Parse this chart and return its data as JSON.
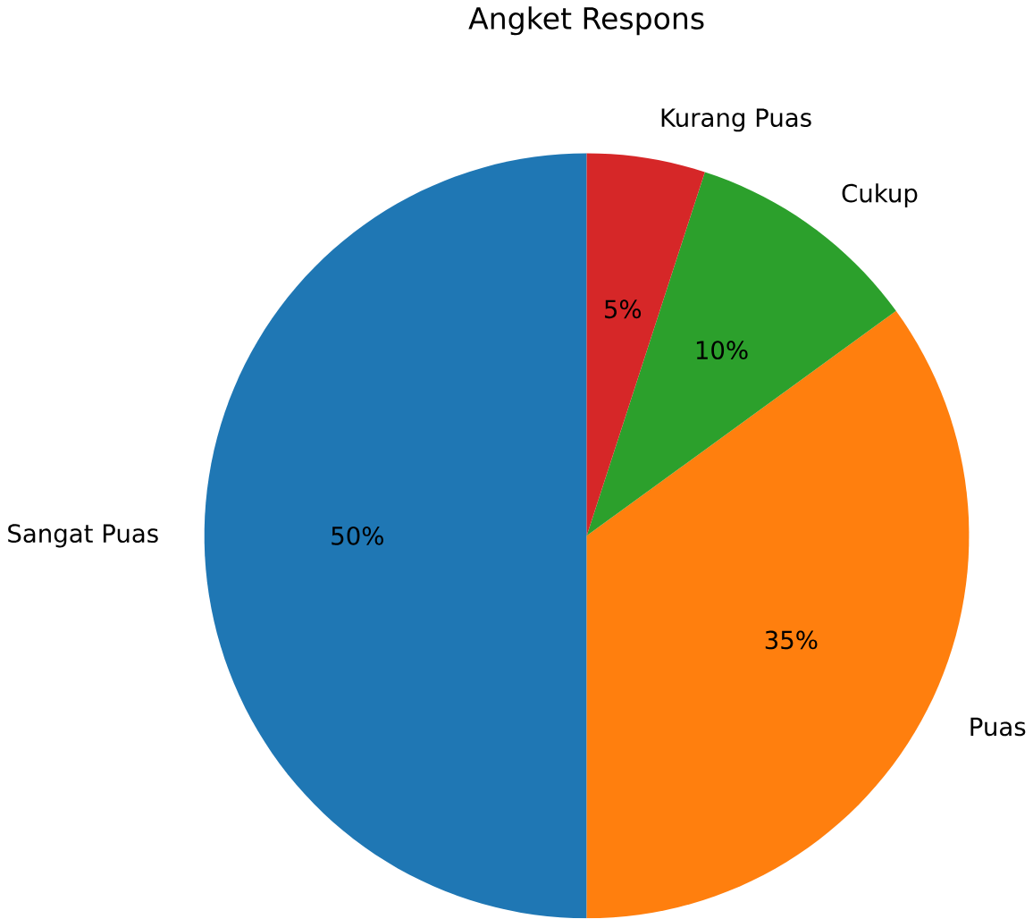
{
  "chart_data": {
    "type": "pie",
    "title": "Angket Respons",
    "categories": [
      "Sangat Puas",
      "Puas",
      "Cukup",
      "Kurang Puas"
    ],
    "values": [
      50,
      35,
      10,
      5
    ],
    "colors": [
      "#1f77b4",
      "#ff7f0e",
      "#2ca02c",
      "#d62728"
    ],
    "value_labels": [
      "50%",
      "35%",
      "10%",
      "5%"
    ]
  }
}
